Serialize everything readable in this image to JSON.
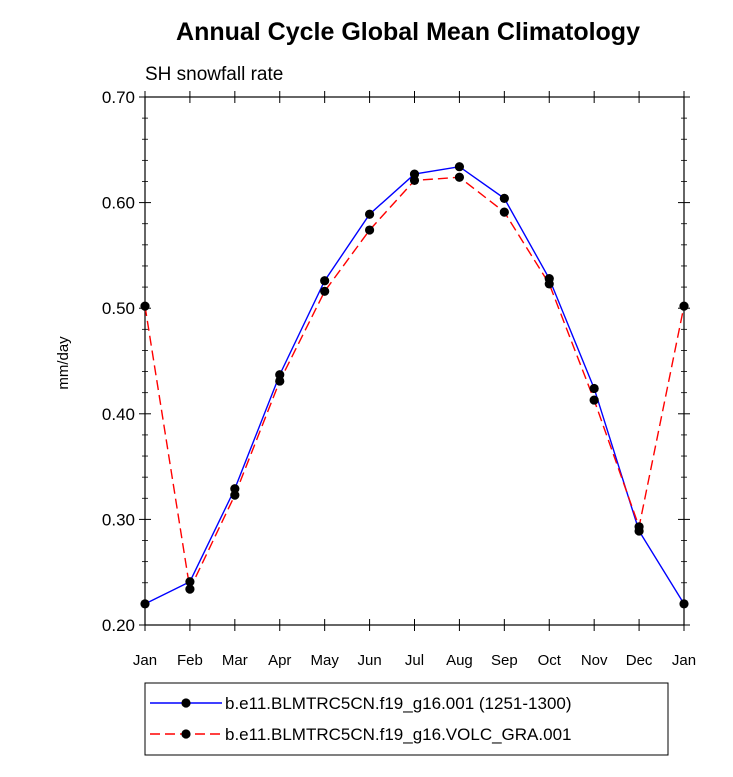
{
  "chart_data": {
    "type": "line",
    "title": "Annual Cycle Global Mean Climatology",
    "subtitle": "SH snowfall rate",
    "xlabel": "",
    "ylabel": "mm/day",
    "ylim": [
      0.2,
      0.7
    ],
    "yticks": [
      "0.20",
      "0.30",
      "0.40",
      "0.50",
      "0.60",
      "0.70"
    ],
    "categories": [
      "Jan",
      "Feb",
      "Mar",
      "Apr",
      "May",
      "Jun",
      "Jul",
      "Aug",
      "Sep",
      "Oct",
      "Nov",
      "Dec",
      "Jan"
    ],
    "series": [
      {
        "name": "b.e11.BLMTRC5CN.f19_g16.001 (1251-1300)",
        "color": "#0000ff",
        "style": "solid",
        "values": [
          0.22,
          0.241,
          0.329,
          0.437,
          0.526,
          0.589,
          0.627,
          0.634,
          0.604,
          0.528,
          0.424,
          0.289,
          0.22
        ]
      },
      {
        "name": "b.e11.BLMTRC5CN.f19_g16.VOLC_GRA.001",
        "color": "#ff0000",
        "style": "dashed",
        "values": [
          0.502,
          0.234,
          0.323,
          0.431,
          0.516,
          0.574,
          0.621,
          0.624,
          0.591,
          0.523,
          0.413,
          0.293,
          0.502
        ]
      }
    ]
  }
}
